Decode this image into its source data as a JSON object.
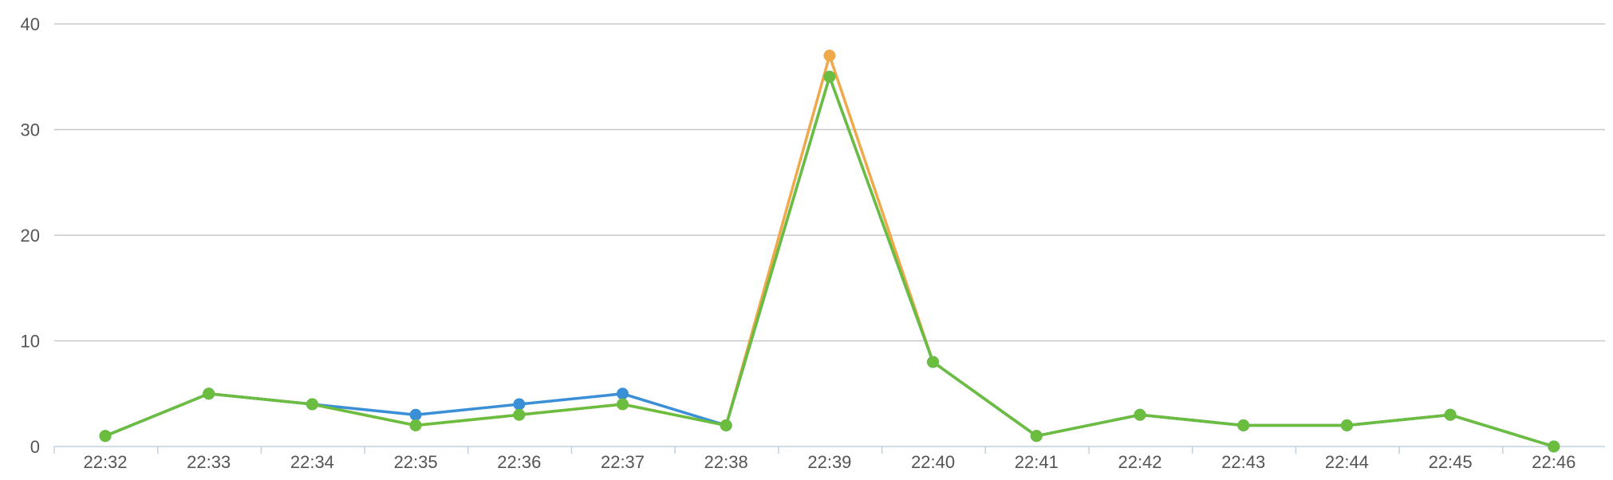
{
  "chart_data": {
    "type": "line",
    "categories": [
      "22:32",
      "22:33",
      "22:34",
      "22:35",
      "22:36",
      "22:37",
      "22:38",
      "22:39",
      "22:40",
      "22:41",
      "22:42",
      "22:43",
      "22:44",
      "22:45",
      "22:46"
    ],
    "series": [
      {
        "color": "#f0a94a",
        "values": [
          1,
          5,
          4,
          2,
          3,
          4,
          2,
          37,
          8,
          1,
          3,
          2,
          2,
          3,
          0
        ]
      },
      {
        "color": "#3a8fd6",
        "values": [
          1,
          5,
          4,
          3,
          4,
          5,
          2,
          35,
          8,
          1,
          3,
          2,
          2,
          3,
          0
        ]
      },
      {
        "color": "#6abd3e",
        "values": [
          1,
          5,
          4,
          2,
          3,
          4,
          2,
          35,
          8,
          1,
          3,
          2,
          2,
          3,
          0
        ]
      }
    ],
    "y_ticks": [
      "0",
      "10",
      "20",
      "30",
      "40"
    ],
    "ylim": [
      0,
      40
    ],
    "grid": true
  }
}
